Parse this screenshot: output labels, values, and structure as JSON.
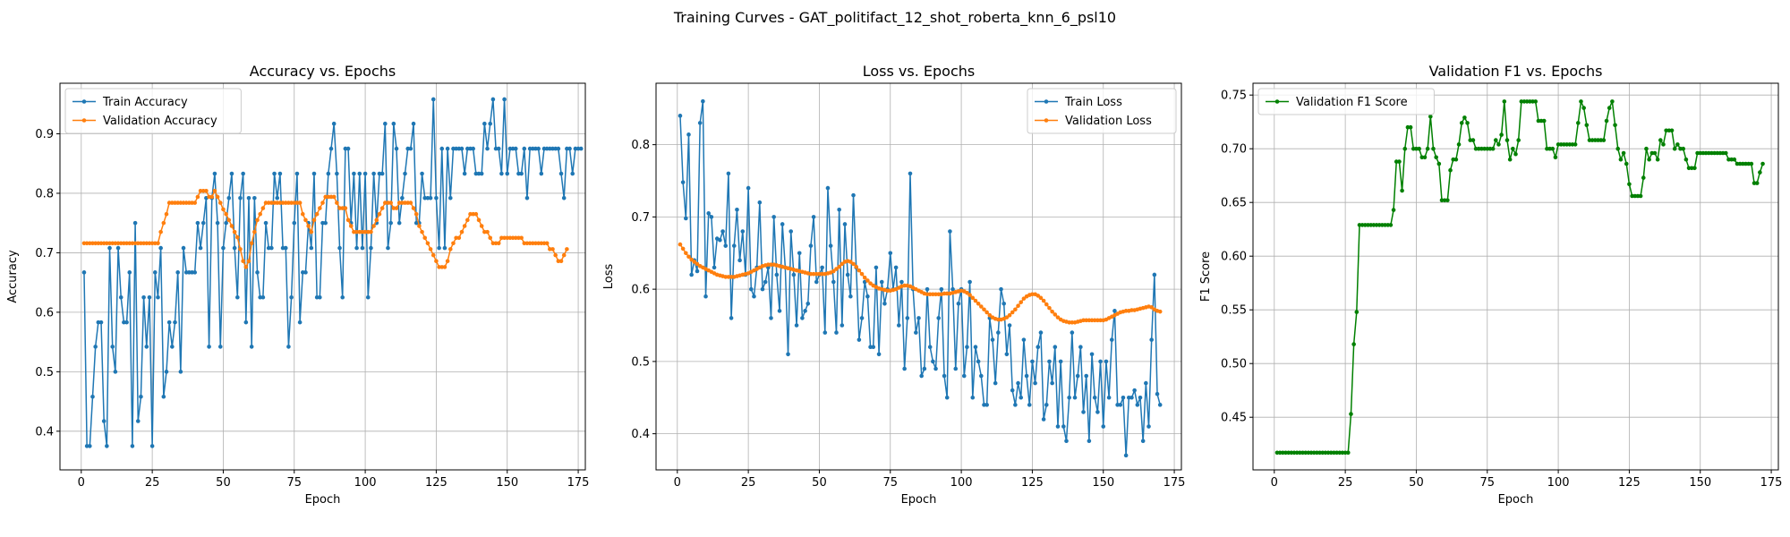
{
  "figure": {
    "suptitle": "Training Curves - GAT_politifact_12_shot_roberta_knn_6_psl10"
  },
  "colors": {
    "train": "#1f77b4",
    "validation": "#ff7f0e",
    "f1": "#008000",
    "grid": "#b0b0b0",
    "axis": "#000000"
  },
  "chart_data": [
    {
      "type": "line",
      "title": "Accuracy vs. Epochs",
      "xlabel": "Epoch",
      "ylabel": "Accuracy",
      "xlim": [
        -7.5,
        177.5
      ],
      "ylim": [
        0.335,
        0.985
      ],
      "xticks": [
        0,
        25,
        50,
        75,
        100,
        125,
        150,
        175
      ],
      "yticks": [
        0.4,
        0.5,
        0.6,
        0.7,
        0.8,
        0.9
      ],
      "ytick_decimals": 1,
      "grid": true,
      "legend": "upper left",
      "series": [
        {
          "name": "Train Accuracy",
          "color_key": "train",
          "x_start": 1,
          "values": [
            0.667,
            0.375,
            0.375,
            0.458,
            0.542,
            0.583,
            0.583,
            0.417,
            0.375,
            0.708,
            0.542,
            0.5,
            0.708,
            0.625,
            0.583,
            0.583,
            0.667,
            0.375,
            0.75,
            0.417,
            0.458,
            0.625,
            0.542,
            0.625,
            0.375,
            0.667,
            0.625,
            0.708,
            0.458,
            0.5,
            0.583,
            0.542,
            0.583,
            0.667,
            0.5,
            0.708,
            0.667,
            0.667,
            0.667,
            0.667,
            0.75,
            0.708,
            0.75,
            0.792,
            0.542,
            0.792,
            0.833,
            0.75,
            0.542,
            0.708,
            0.75,
            0.792,
            0.833,
            0.708,
            0.625,
            0.792,
            0.833,
            0.583,
            0.792,
            0.542,
            0.792,
            0.667,
            0.625,
            0.625,
            0.75,
            0.708,
            0.708,
            0.833,
            0.792,
            0.833,
            0.708,
            0.708,
            0.542,
            0.625,
            0.75,
            0.833,
            0.583,
            0.667,
            0.667,
            0.75,
            0.708,
            0.833,
            0.625,
            0.625,
            0.75,
            0.75,
            0.833,
            0.875,
            0.917,
            0.833,
            0.708,
            0.625,
            0.875,
            0.875,
            0.75,
            0.833,
            0.708,
            0.833,
            0.708,
            0.833,
            0.625,
            0.708,
            0.833,
            0.75,
            0.833,
            0.833,
            0.917,
            0.708,
            0.75,
            0.917,
            0.875,
            0.75,
            0.792,
            0.833,
            0.875,
            0.875,
            0.917,
            0.75,
            0.75,
            0.833,
            0.792,
            0.792,
            0.792,
            0.958,
            0.792,
            0.708,
            0.875,
            0.708,
            0.875,
            0.792,
            0.875,
            0.875,
            0.875,
            0.875,
            0.833,
            0.875,
            0.875,
            0.875,
            0.833,
            0.833,
            0.833,
            0.917,
            0.875,
            0.917,
            0.958,
            0.875,
            0.875,
            0.833,
            0.958,
            0.833,
            0.875,
            0.875,
            0.875,
            0.833,
            0.833,
            0.875,
            0.792,
            0.875,
            0.875,
            0.875,
            0.875,
            0.833,
            0.875,
            0.875,
            0.875,
            0.875,
            0.875,
            0.875,
            0.833,
            0.792,
            0.875,
            0.875,
            0.833,
            0.875,
            0.875,
            0.875
          ]
        },
        {
          "name": "Validation Accuracy",
          "color_key": "validation",
          "x_start": 1,
          "values": [
            0.716,
            0.716,
            0.716,
            0.716,
            0.716,
            0.716,
            0.716,
            0.716,
            0.716,
            0.716,
            0.716,
            0.716,
            0.716,
            0.716,
            0.716,
            0.716,
            0.716,
            0.716,
            0.716,
            0.716,
            0.716,
            0.716,
            0.716,
            0.716,
            0.716,
            0.716,
            0.716,
            0.735,
            0.75,
            0.765,
            0.784,
            0.784,
            0.784,
            0.784,
            0.784,
            0.784,
            0.784,
            0.784,
            0.784,
            0.784,
            0.794,
            0.804,
            0.804,
            0.804,
            0.794,
            0.794,
            0.804,
            0.794,
            0.784,
            0.773,
            0.765,
            0.755,
            0.745,
            0.735,
            0.726,
            0.706,
            0.686,
            0.676,
            0.686,
            0.716,
            0.735,
            0.755,
            0.765,
            0.775,
            0.784,
            0.784,
            0.784,
            0.784,
            0.784,
            0.784,
            0.784,
            0.784,
            0.784,
            0.784,
            0.784,
            0.784,
            0.784,
            0.765,
            0.755,
            0.745,
            0.735,
            0.755,
            0.765,
            0.775,
            0.784,
            0.794,
            0.794,
            0.794,
            0.794,
            0.784,
            0.775,
            0.775,
            0.775,
            0.755,
            0.745,
            0.735,
            0.735,
            0.735,
            0.735,
            0.735,
            0.735,
            0.735,
            0.745,
            0.755,
            0.765,
            0.775,
            0.784,
            0.784,
            0.784,
            0.775,
            0.775,
            0.784,
            0.784,
            0.784,
            0.784,
            0.784,
            0.775,
            0.765,
            0.745,
            0.735,
            0.725,
            0.716,
            0.706,
            0.696,
            0.686,
            0.676,
            0.676,
            0.676,
            0.686,
            0.706,
            0.716,
            0.725,
            0.725,
            0.735,
            0.745,
            0.755,
            0.765,
            0.765,
            0.765,
            0.755,
            0.745,
            0.735,
            0.735,
            0.725,
            0.716,
            0.716,
            0.716,
            0.725,
            0.725,
            0.725,
            0.725,
            0.725,
            0.725,
            0.725,
            0.725,
            0.716,
            0.716,
            0.716,
            0.716,
            0.716,
            0.716,
            0.716,
            0.716,
            0.716,
            0.706,
            0.706,
            0.696,
            0.686,
            0.686,
            0.696,
            0.706
          ]
        }
      ]
    },
    {
      "type": "line",
      "title": "Loss vs. Epochs",
      "xlabel": "Epoch",
      "ylabel": "Loss",
      "xlim": [
        -7.5,
        177.5
      ],
      "ylim": [
        0.35,
        0.885
      ],
      "xticks": [
        0,
        25,
        50,
        75,
        100,
        125,
        150,
        175
      ],
      "yticks": [
        0.4,
        0.5,
        0.6,
        0.7,
        0.8
      ],
      "ytick_decimals": 1,
      "grid": true,
      "legend": "upper right",
      "series": [
        {
          "name": "Train Loss",
          "color_key": "train",
          "x_start": 1,
          "values": [
            0.84,
            0.748,
            0.698,
            0.814,
            0.62,
            0.64,
            0.625,
            0.83,
            0.86,
            0.59,
            0.705,
            0.7,
            0.63,
            0.67,
            0.668,
            0.68,
            0.66,
            0.76,
            0.56,
            0.66,
            0.71,
            0.64,
            0.68,
            0.62,
            0.74,
            0.6,
            0.59,
            0.63,
            0.72,
            0.6,
            0.61,
            0.63,
            0.56,
            0.7,
            0.62,
            0.57,
            0.69,
            0.63,
            0.51,
            0.68,
            0.62,
            0.55,
            0.65,
            0.56,
            0.57,
            0.58,
            0.66,
            0.7,
            0.61,
            0.62,
            0.63,
            0.54,
            0.74,
            0.66,
            0.61,
            0.54,
            0.71,
            0.55,
            0.69,
            0.62,
            0.59,
            0.73,
            0.63,
            0.53,
            0.56,
            0.61,
            0.59,
            0.52,
            0.52,
            0.63,
            0.51,
            0.61,
            0.58,
            0.6,
            0.65,
            0.6,
            0.63,
            0.55,
            0.61,
            0.49,
            0.56,
            0.76,
            0.6,
            0.54,
            0.56,
            0.48,
            0.49,
            0.6,
            0.52,
            0.5,
            0.49,
            0.56,
            0.6,
            0.48,
            0.45,
            0.68,
            0.6,
            0.49,
            0.58,
            0.6,
            0.48,
            0.52,
            0.61,
            0.45,
            0.52,
            0.5,
            0.48,
            0.44,
            0.44,
            0.56,
            0.53,
            0.47,
            0.54,
            0.6,
            0.58,
            0.51,
            0.55,
            0.46,
            0.44,
            0.47,
            0.45,
            0.53,
            0.48,
            0.44,
            0.5,
            0.47,
            0.52,
            0.54,
            0.42,
            0.44,
            0.5,
            0.47,
            0.52,
            0.41,
            0.5,
            0.41,
            0.39,
            0.45,
            0.54,
            0.45,
            0.48,
            0.52,
            0.43,
            0.48,
            0.39,
            0.51,
            0.45,
            0.43,
            0.5,
            0.41,
            0.5,
            0.45,
            0.53,
            0.57,
            0.44,
            0.44,
            0.45,
            0.37,
            0.45,
            0.45,
            0.46,
            0.44,
            0.45,
            0.39,
            0.47,
            0.41,
            0.53,
            0.62,
            0.455,
            0.44
          ]
        },
        {
          "name": "Validation Loss",
          "color_key": "validation",
          "x_start": 1,
          "values": [
            0.662,
            0.656,
            0.65,
            0.645,
            0.641,
            0.638,
            0.635,
            0.632,
            0.63,
            0.628,
            0.626,
            0.624,
            0.622,
            0.62,
            0.619,
            0.618,
            0.617,
            0.617,
            0.617,
            0.617,
            0.618,
            0.619,
            0.62,
            0.621,
            0.622,
            0.624,
            0.626,
            0.628,
            0.63,
            0.632,
            0.633,
            0.634,
            0.634,
            0.634,
            0.633,
            0.632,
            0.631,
            0.63,
            0.629,
            0.628,
            0.627,
            0.626,
            0.625,
            0.624,
            0.623,
            0.622,
            0.621,
            0.621,
            0.621,
            0.621,
            0.621,
            0.621,
            0.622,
            0.623,
            0.625,
            0.628,
            0.631,
            0.635,
            0.638,
            0.639,
            0.638,
            0.635,
            0.631,
            0.626,
            0.621,
            0.616,
            0.612,
            0.608,
            0.605,
            0.603,
            0.601,
            0.6,
            0.599,
            0.598,
            0.598,
            0.599,
            0.6,
            0.602,
            0.604,
            0.605,
            0.605,
            0.604,
            0.602,
            0.6,
            0.598,
            0.596,
            0.594,
            0.593,
            0.593,
            0.593,
            0.593,
            0.593,
            0.593,
            0.594,
            0.594,
            0.594,
            0.595,
            0.596,
            0.597,
            0.598,
            0.597,
            0.595,
            0.592,
            0.588,
            0.584,
            0.58,
            0.576,
            0.572,
            0.568,
            0.564,
            0.561,
            0.559,
            0.558,
            0.558,
            0.559,
            0.561,
            0.564,
            0.568,
            0.572,
            0.577,
            0.582,
            0.587,
            0.59,
            0.592,
            0.593,
            0.593,
            0.591,
            0.588,
            0.584,
            0.579,
            0.574,
            0.569,
            0.565,
            0.561,
            0.558,
            0.556,
            0.555,
            0.554,
            0.554,
            0.554,
            0.555,
            0.556,
            0.557,
            0.557,
            0.557,
            0.557,
            0.557,
            0.557,
            0.557,
            0.557,
            0.558,
            0.56,
            0.562,
            0.564,
            0.566,
            0.568,
            0.569,
            0.57,
            0.57,
            0.571,
            0.571,
            0.572,
            0.573,
            0.574,
            0.575,
            0.576,
            0.575,
            0.572,
            0.57,
            0.569
          ]
        }
      ]
    },
    {
      "type": "line",
      "title": "Validation F1 vs. Epochs",
      "xlabel": "Epoch",
      "ylabel": "F1 Score",
      "xlim": [
        -7.5,
        177.5
      ],
      "ylim": [
        0.401,
        0.761
      ],
      "xticks": [
        0,
        25,
        50,
        75,
        100,
        125,
        150,
        175
      ],
      "yticks": [
        0.45,
        0.5,
        0.55,
        0.6,
        0.65,
        0.7,
        0.75
      ],
      "ytick_decimals": 2,
      "grid": true,
      "legend": "upper left",
      "series": [
        {
          "name": "Validation F1 Score",
          "color_key": "f1",
          "x_start": 1,
          "values": [
            0.417,
            0.417,
            0.417,
            0.417,
            0.417,
            0.417,
            0.417,
            0.417,
            0.417,
            0.417,
            0.417,
            0.417,
            0.417,
            0.417,
            0.417,
            0.417,
            0.417,
            0.417,
            0.417,
            0.417,
            0.417,
            0.417,
            0.417,
            0.417,
            0.417,
            0.417,
            0.453,
            0.518,
            0.548,
            0.629,
            0.629,
            0.629,
            0.629,
            0.629,
            0.629,
            0.629,
            0.629,
            0.629,
            0.629,
            0.629,
            0.629,
            0.643,
            0.688,
            0.688,
            0.661,
            0.7,
            0.72,
            0.72,
            0.7,
            0.7,
            0.7,
            0.692,
            0.692,
            0.7,
            0.73,
            0.7,
            0.692,
            0.686,
            0.652,
            0.652,
            0.652,
            0.68,
            0.69,
            0.69,
            0.704,
            0.724,
            0.729,
            0.724,
            0.708,
            0.708,
            0.7,
            0.7,
            0.7,
            0.7,
            0.7,
            0.7,
            0.7,
            0.708,
            0.704,
            0.713,
            0.744,
            0.708,
            0.69,
            0.7,
            0.695,
            0.708,
            0.744,
            0.744,
            0.744,
            0.744,
            0.744,
            0.744,
            0.726,
            0.726,
            0.726,
            0.7,
            0.7,
            0.7,
            0.692,
            0.704,
            0.704,
            0.704,
            0.704,
            0.704,
            0.704,
            0.704,
            0.724,
            0.744,
            0.738,
            0.722,
            0.708,
            0.708,
            0.708,
            0.708,
            0.708,
            0.708,
            0.726,
            0.738,
            0.744,
            0.722,
            0.7,
            0.69,
            0.696,
            0.686,
            0.667,
            0.656,
            0.656,
            0.656,
            0.656,
            0.673,
            0.7,
            0.69,
            0.696,
            0.696,
            0.69,
            0.708,
            0.704,
            0.717,
            0.717,
            0.717,
            0.7,
            0.704,
            0.7,
            0.7,
            0.69,
            0.682,
            0.682,
            0.682,
            0.696,
            0.696,
            0.696,
            0.696,
            0.696,
            0.696,
            0.696,
            0.696,
            0.696,
            0.696,
            0.696,
            0.69,
            0.69,
            0.69,
            0.686,
            0.686,
            0.686,
            0.686,
            0.686,
            0.686,
            0.668,
            0.668,
            0.678,
            0.686
          ]
        }
      ]
    }
  ]
}
